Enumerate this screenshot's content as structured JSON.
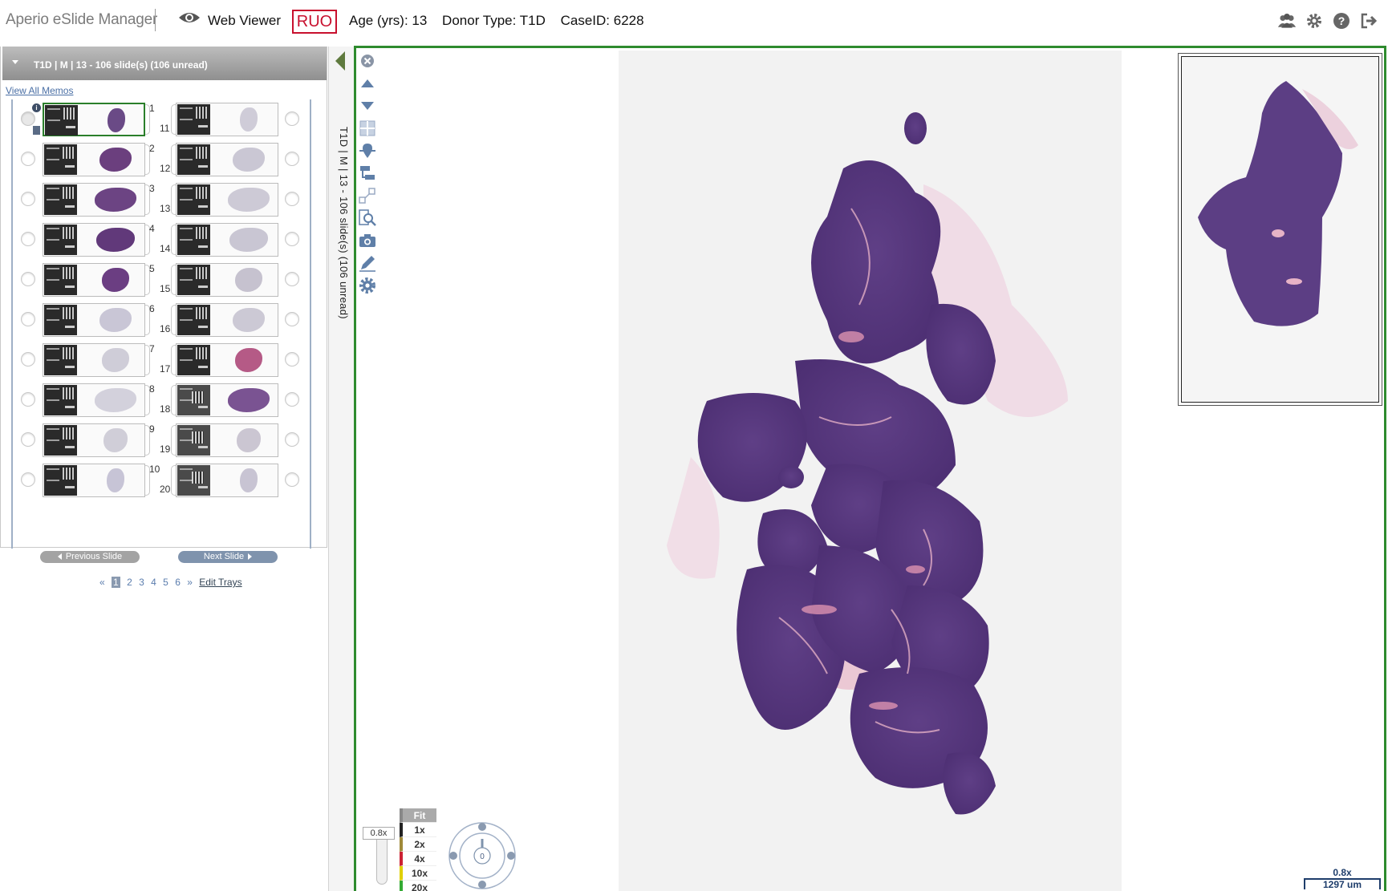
{
  "header": {
    "app_title": "Aperio eSlide Manager",
    "viewer_label": "Web Viewer",
    "ruo": "RUO",
    "age": "Age (yrs): 13",
    "donor_type": "Donor Type: T1D",
    "case_id": "CaseID: 6228",
    "icons": [
      "users-icon",
      "gear-icon",
      "help-icon",
      "logout-icon"
    ]
  },
  "panel": {
    "case_title": "T1D | M | 13 - 106 slide(s) (106 unread)",
    "memos_link": "View All Memos",
    "prev_label": "Previous Slide",
    "next_label": "Next Slide",
    "pages": [
      "«",
      "1",
      "2",
      "3",
      "4",
      "5",
      "6",
      "»"
    ],
    "current_page": "1",
    "edit_trays": "Edit Trays"
  },
  "slides_left": [
    {
      "num": "1",
      "tissue": "#6a4a86",
      "selected": true
    },
    {
      "num": "2",
      "tissue": "#6b3f7e"
    },
    {
      "num": "3",
      "tissue": "#6c4483"
    },
    {
      "num": "4",
      "tissue": "#61397a"
    },
    {
      "num": "5",
      "tissue": "#6b3e82"
    },
    {
      "num": "6",
      "tissue": "#c9c6d6"
    },
    {
      "num": "7",
      "tissue": "#cfcdd8"
    },
    {
      "num": "8",
      "tissue": "#d3d1dc"
    },
    {
      "num": "9",
      "tissue": "#d0ced8"
    },
    {
      "num": "10",
      "tissue": "#c7c4d6"
    }
  ],
  "slides_right": [
    {
      "num": "11",
      "tissue": "#cfccd8"
    },
    {
      "num": "12",
      "tissue": "#cac7d4"
    },
    {
      "num": "13",
      "tissue": "#cdcad6"
    },
    {
      "num": "14",
      "tissue": "#c9c6d3"
    },
    {
      "num": "15",
      "tissue": "#c6c2cf"
    },
    {
      "num": "16",
      "tissue": "#ccc9d5"
    },
    {
      "num": "17",
      "tissue": "#b55a86"
    },
    {
      "num": "18",
      "tissue": "#7a5392"
    },
    {
      "num": "19",
      "tissue": "#cbc6d2"
    },
    {
      "num": "20",
      "tissue": "#c8c4d3"
    }
  ],
  "strip": {
    "label": "T1D | M | 13 - 106 slide(s) (106 unread)"
  },
  "viewer": {
    "zoom_readout": "0.8x",
    "magnifications": [
      "Fit",
      "1x",
      "2x",
      "4x",
      "10x",
      "20x"
    ],
    "mag_colors": [
      "#888888",
      "#222222",
      "#a08a3a",
      "#cc2233",
      "#e0d000",
      "#33aa33"
    ],
    "rotation": "0",
    "scale_zoom": "0.8x",
    "scale_length": "1297 um",
    "tools": [
      "close-icon",
      "arrow-up-icon",
      "arrow-down-icon",
      "grid-icon",
      "locate-icon",
      "tree-icon",
      "hierarchy-icon",
      "zoom-region-icon",
      "camera-icon",
      "pencil-icon",
      "settings-icon"
    ],
    "accent": "#2e8b2e"
  }
}
